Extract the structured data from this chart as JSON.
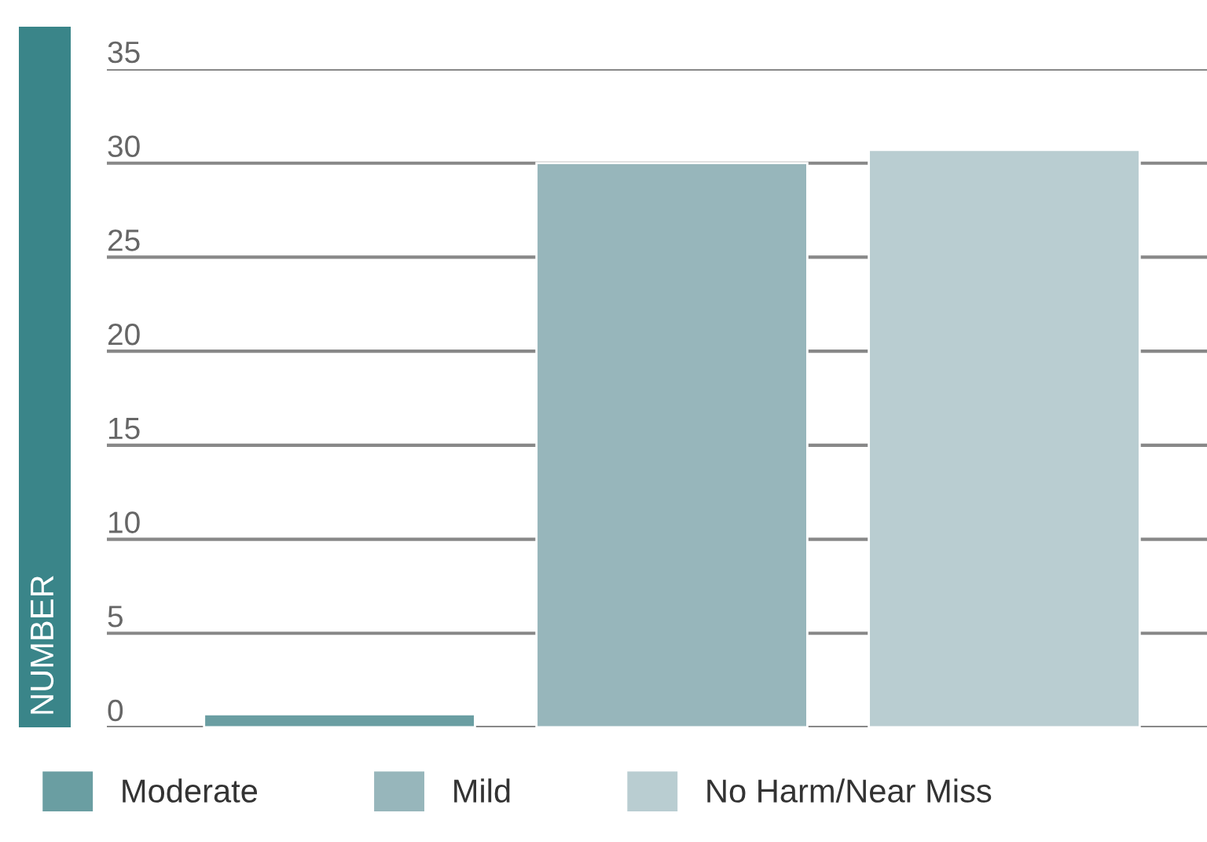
{
  "chart_data": {
    "type": "bar",
    "ylabel": "NUMBER",
    "categories": [
      null,
      null,
      null
    ],
    "series": [
      {
        "name": "Moderate",
        "color": "#6a9ea2",
        "values": [
          0.7,
          null,
          null
        ]
      },
      {
        "name": "Mild",
        "color": "#97b6bb",
        "values": [
          null,
          30,
          null
        ]
      },
      {
        "name": "No Harm/Near Miss",
        "color": "#b9cdd1",
        "values": [
          null,
          null,
          30.7
        ]
      }
    ],
    "ylim": [
      0,
      35
    ],
    "yticks": [
      0,
      5,
      10,
      15,
      20,
      25,
      30,
      35
    ],
    "grid": "y",
    "legend": "bottom"
  }
}
